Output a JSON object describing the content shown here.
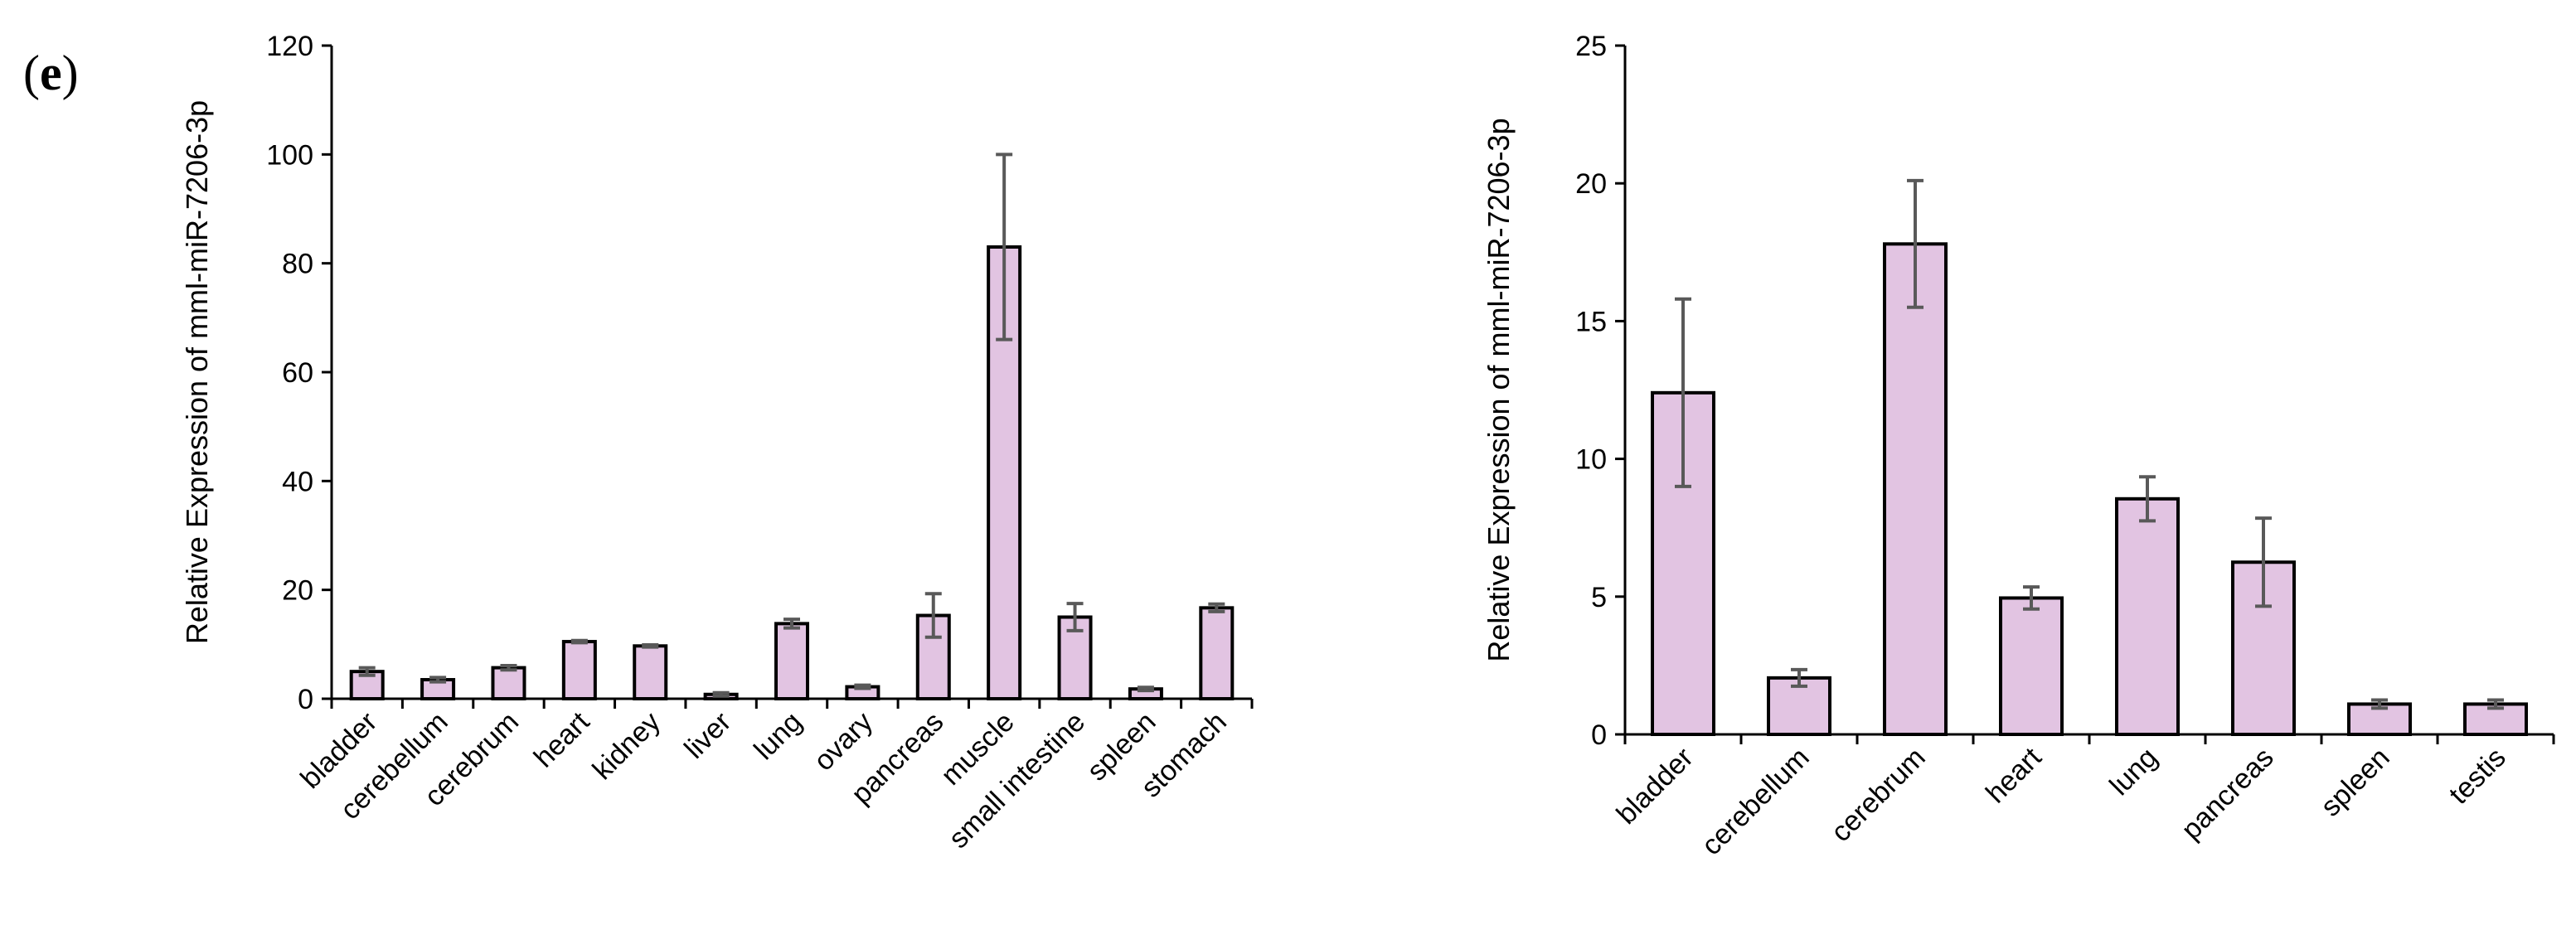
{
  "panel_label": {
    "open": "(",
    "letter": "e",
    "close": ")"
  },
  "colors": {
    "bar_fill": "#e2c4e2",
    "bar_stroke": "#000000",
    "error_bar": "#595959"
  },
  "chart_data": [
    {
      "type": "bar",
      "ylabel": "Relative Expression of mml-miR-7206-3p",
      "ylim": [
        0,
        120
      ],
      "yticks": [
        0,
        20,
        40,
        60,
        80,
        100,
        120
      ],
      "grid": false,
      "categories": [
        "bladder",
        "cerebellum",
        "cerebrum",
        "heart",
        "kidney",
        "liver",
        "lung",
        "ovary",
        "pancreas",
        "muscle",
        "small intestine",
        "spleen",
        "stomach"
      ],
      "values": [
        5.0,
        3.5,
        5.7,
        10.5,
        9.7,
        0.8,
        13.8,
        2.2,
        15.3,
        83.0,
        15.0,
        1.8,
        16.7
      ],
      "errors": [
        0.7,
        0.4,
        0.4,
        0.2,
        0.2,
        0.3,
        0.8,
        0.3,
        4.0,
        17.0,
        2.5,
        0.3,
        0.7
      ]
    },
    {
      "type": "bar",
      "ylabel": "Relative Expression of mml-miR-7206-3p",
      "ylim": [
        0,
        25
      ],
      "yticks": [
        0,
        5,
        10,
        15,
        20,
        25
      ],
      "grid": false,
      "categories": [
        "bladder",
        "cerebellum",
        "cerebrum",
        "heart",
        "lung",
        "pancreas",
        "spleen",
        "testis"
      ],
      "values": [
        12.4,
        2.05,
        17.8,
        4.95,
        8.55,
        6.25,
        1.1,
        1.1
      ],
      "errors": [
        3.4,
        0.3,
        2.3,
        0.4,
        0.8,
        1.6,
        0.15,
        0.15
      ]
    }
  ]
}
